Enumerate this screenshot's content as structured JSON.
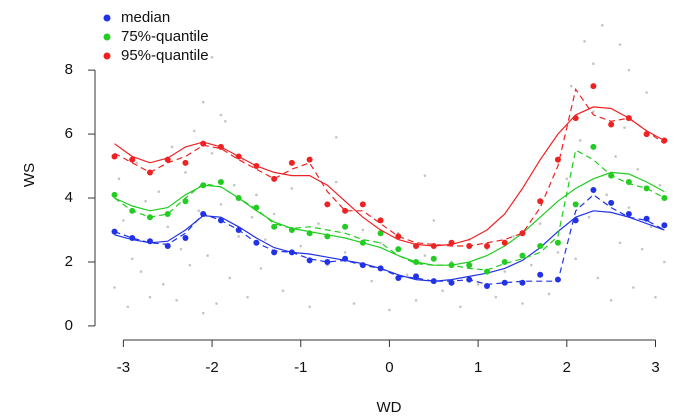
{
  "chart_data": {
    "type": "scatter",
    "xlabel": "WD",
    "ylabel": "WS",
    "xlim": [
      -3.32,
      3.22
    ],
    "ylim": [
      -0.44,
      9.88
    ],
    "xticks": [
      -3,
      -2,
      -1,
      0,
      1,
      2,
      3
    ],
    "yticks": [
      0,
      2,
      4,
      6,
      8
    ],
    "legend": "top-left",
    "cloud": {
      "color": "#c4c4c4",
      "x": [
        -3.1,
        -3.05,
        -3.0,
        -2.95,
        -2.9,
        -2.85,
        -2.8,
        -2.75,
        -2.7,
        -2.65,
        -2.6,
        -2.55,
        -2.5,
        -2.45,
        -2.4,
        -2.35,
        -2.3,
        -2.25,
        -2.2,
        -2.15,
        -2.1,
        -2.05,
        -2.0,
        -1.95,
        -1.9,
        -1.85,
        -1.8,
        -1.75,
        -1.7,
        -1.65,
        -1.6,
        -1.55,
        -1.5,
        -1.45,
        -1.4,
        -1.3,
        -1.2,
        -1.1,
        -1.0,
        -0.9,
        -0.8,
        -0.7,
        -0.6,
        -0.5,
        -0.4,
        -0.3,
        -0.2,
        -0.1,
        0.0,
        0.1,
        0.2,
        0.3,
        0.4,
        0.5,
        0.6,
        0.7,
        0.8,
        0.9,
        1.0,
        1.1,
        1.2,
        1.3,
        1.4,
        1.5,
        1.6,
        1.7,
        1.8,
        1.9,
        2.0,
        2.05,
        2.1,
        2.15,
        2.2,
        2.25,
        2.3,
        2.35,
        2.4,
        2.45,
        2.5,
        2.55,
        2.6,
        2.65,
        2.7,
        2.75,
        2.8,
        2.85,
        2.9,
        2.95,
        3.0,
        3.05,
        3.1,
        -2.0,
        -2.1,
        -1.9,
        -2.2,
        2.3,
        2.6,
        2.7,
        -0.6,
        0.4
      ],
      "y": [
        1.2,
        4.6,
        3.3,
        0.6,
        2.1,
        5.1,
        1.7,
        3.9,
        0.9,
        2.6,
        4.2,
        1.3,
        3.1,
        5.6,
        0.8,
        2.4,
        4.8,
        1.9,
        6.1,
        3.6,
        7.0,
        2.2,
        5.4,
        0.7,
        3.8,
        6.4,
        1.5,
        4.4,
        2.8,
        5.2,
        0.9,
        3.4,
        4.1,
        1.8,
        2.7,
        3.5,
        1.1,
        4.3,
        2.5,
        0.6,
        3.2,
        1.9,
        4.5,
        2.3,
        0.7,
        3.0,
        1.4,
        2.6,
        0.5,
        2.9,
        1.6,
        0.8,
        2.2,
        3.3,
        1.1,
        2.0,
        0.6,
        2.7,
        1.3,
        2.4,
        0.9,
        1.7,
        2.8,
        0.7,
        1.9,
        3.2,
        1.0,
        2.3,
        4.6,
        7.5,
        2.1,
        5.8,
        8.9,
        3.4,
        6.7,
        1.5,
        9.4,
        4.1,
        0.8,
        5.3,
        2.6,
        6.2,
        3.7,
        1.2,
        4.9,
        2.4,
        7.3,
        3.1,
        0.9,
        4.4,
        2.0,
        8.4,
        0.4,
        6.6,
        9.1,
        8.2,
        8.8,
        8.0,
        5.9,
        4.7
      ]
    },
    "x": [
      -3.1,
      -2.9,
      -2.7,
      -2.5,
      -2.3,
      -2.1,
      -1.9,
      -1.7,
      -1.5,
      -1.3,
      -1.1,
      -0.9,
      -0.7,
      -0.5,
      -0.3,
      -0.1,
      0.1,
      0.3,
      0.5,
      0.7,
      0.9,
      1.1,
      1.3,
      1.5,
      1.7,
      1.9,
      2.1,
      2.3,
      2.5,
      2.7,
      2.9,
      3.1
    ],
    "series": [
      {
        "name": "median",
        "color": "#2233e6",
        "values": [
          2.95,
          2.75,
          2.65,
          2.5,
          2.75,
          3.5,
          3.3,
          3.0,
          2.6,
          2.3,
          2.3,
          2.05,
          2.0,
          2.1,
          1.9,
          1.8,
          1.5,
          1.55,
          1.4,
          1.35,
          1.45,
          1.25,
          1.35,
          1.35,
          1.6,
          1.45,
          3.3,
          4.25,
          3.85,
          3.5,
          3.35,
          3.15
        ],
        "smooth": [
          2.85,
          2.7,
          2.6,
          2.65,
          3.0,
          3.45,
          3.4,
          3.1,
          2.75,
          2.45,
          2.3,
          2.25,
          2.15,
          2.05,
          1.95,
          1.8,
          1.6,
          1.45,
          1.4,
          1.45,
          1.55,
          1.65,
          1.8,
          2.05,
          2.45,
          2.95,
          3.4,
          3.6,
          3.55,
          3.4,
          3.2,
          3.0
        ],
        "dashed": [
          2.95,
          2.75,
          2.6,
          2.55,
          2.9,
          3.5,
          3.3,
          3.0,
          2.6,
          2.35,
          2.3,
          2.1,
          2.0,
          2.05,
          1.9,
          1.8,
          1.55,
          1.5,
          1.4,
          1.4,
          1.45,
          1.3,
          1.35,
          1.4,
          1.4,
          1.4,
          3.6,
          4.1,
          3.7,
          3.4,
          3.3,
          3.0
        ]
      },
      {
        "name": "75%-quantile",
        "color": "#22cc22",
        "values": [
          4.1,
          3.6,
          3.4,
          3.5,
          3.9,
          4.4,
          4.5,
          4.0,
          3.7,
          3.1,
          3.0,
          2.9,
          2.8,
          3.1,
          2.6,
          2.9,
          2.4,
          2.0,
          2.1,
          1.9,
          1.9,
          1.7,
          2.0,
          2.2,
          2.5,
          2.6,
          3.8,
          5.6,
          4.7,
          4.5,
          4.3,
          4.0
        ],
        "smooth": [
          4.0,
          3.75,
          3.6,
          3.7,
          4.1,
          4.4,
          4.35,
          4.0,
          3.6,
          3.25,
          3.05,
          2.95,
          2.85,
          2.75,
          2.6,
          2.45,
          2.2,
          2.0,
          1.9,
          1.9,
          2.0,
          2.2,
          2.5,
          2.9,
          3.4,
          3.9,
          4.3,
          4.6,
          4.8,
          4.75,
          4.5,
          4.2
        ],
        "dashed": [
          4.0,
          3.6,
          3.4,
          3.5,
          4.0,
          4.45,
          4.35,
          4.0,
          3.65,
          3.2,
          3.05,
          3.1,
          3.0,
          2.9,
          2.7,
          2.6,
          2.2,
          1.95,
          1.9,
          1.9,
          1.8,
          1.75,
          1.95,
          2.1,
          2.3,
          2.8,
          5.5,
          5.2,
          4.7,
          4.45,
          4.3,
          4.0
        ]
      },
      {
        "name": "95%-quantile",
        "color": "#ee2222",
        "values": [
          5.3,
          5.2,
          4.8,
          5.2,
          5.1,
          5.7,
          5.6,
          5.3,
          5.0,
          4.6,
          5.1,
          5.2,
          3.8,
          3.6,
          3.8,
          3.3,
          2.8,
          2.5,
          2.5,
          2.6,
          2.5,
          2.5,
          2.6,
          2.9,
          3.9,
          5.2,
          6.5,
          7.5,
          6.3,
          6.5,
          6.0,
          5.8
        ],
        "smooth": [
          5.7,
          5.3,
          5.1,
          5.25,
          5.6,
          5.75,
          5.6,
          5.3,
          5.0,
          4.8,
          4.7,
          4.7,
          4.4,
          3.9,
          3.4,
          3.0,
          2.7,
          2.55,
          2.5,
          2.55,
          2.7,
          3.0,
          3.5,
          4.3,
          5.2,
          6.0,
          6.6,
          6.85,
          6.8,
          6.5,
          6.1,
          5.8
        ],
        "dashed": [
          5.4,
          5.1,
          4.8,
          5.1,
          5.3,
          5.65,
          5.55,
          5.2,
          4.9,
          4.6,
          4.9,
          5.1,
          4.2,
          3.6,
          3.6,
          3.2,
          2.8,
          2.6,
          2.55,
          2.5,
          2.5,
          2.6,
          2.7,
          2.9,
          3.7,
          5.0,
          7.4,
          6.6,
          6.4,
          6.5,
          6.1,
          5.7
        ]
      }
    ]
  }
}
